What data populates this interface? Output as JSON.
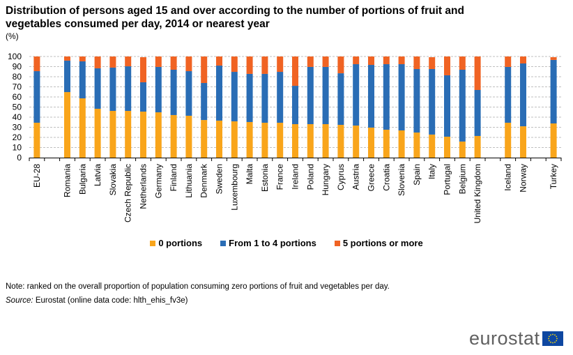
{
  "title": "Distribution of persons aged 15 and over according to the number of portions of fruit and vegetables consumed per day, 2014 or nearest year",
  "unit": "(%)",
  "note": "Note: ranked on the overall proportion of population consuming zero portions of fruit and vegetables per day.",
  "source_label": "Source:",
  "source_text": " Eurostat (online data code: hlth_ehis_fv3e)",
  "logo_text": "eurostat",
  "colors": {
    "zero": "#f9a51b",
    "one_to_four": "#2a6db5",
    "five_plus": "#f06323",
    "grid": "#bfbfbf"
  },
  "chart_data": {
    "type": "bar",
    "stacked": true,
    "title": "Distribution of persons aged 15 and over according to the number of portions of fruit and vegetables consumed per day, 2014 or nearest year",
    "ylabel": "(%)",
    "xlabel": "",
    "ylim": [
      0,
      100
    ],
    "yticks": [
      0,
      10,
      20,
      30,
      40,
      50,
      60,
      70,
      80,
      90,
      100
    ],
    "grid": true,
    "legend_position": "bottom",
    "categories": [
      "EU-28",
      "",
      "Romania",
      "Bulgaria",
      "Latvia",
      "Slovakia",
      "Czech Republic",
      "Netherlands",
      "Germany",
      "Finland",
      "Lithuania",
      "Denmark",
      "Sweden",
      "Luxembourg",
      "Malta",
      "Estonia",
      "France",
      "Ireland",
      "Poland",
      "Hungary",
      "Cyprus",
      "Austria",
      "Greece",
      "Croatia",
      "Slovenia",
      "Spain",
      "Italy",
      "Portugal",
      "Belgium",
      "United Kingdom",
      "",
      "Iceland",
      "Norway",
      "",
      "Turkey"
    ],
    "series": [
      {
        "name": "0 portions",
        "key": "zero",
        "values": [
          34.5,
          null,
          64.8,
          58.6,
          48.3,
          46.2,
          46.2,
          45.5,
          44.8,
          42.1,
          41.4,
          37.2,
          36.6,
          35.9,
          35.2,
          34.5,
          34.5,
          33.1,
          33.1,
          33.1,
          32.4,
          31.7,
          29.7,
          27.6,
          26.9,
          24.8,
          22.8,
          20.7,
          15.9,
          21.4,
          null,
          34.5,
          31.0,
          null,
          33.8
        ]
      },
      {
        "name": "From 1 to 4 portions",
        "key": "one_to_four",
        "values": [
          51.0,
          null,
          31.1,
          36.6,
          40.0,
          42.8,
          44.1,
          29.0,
          44.9,
          44.8,
          44.1,
          36.6,
          54.4,
          48.9,
          47.6,
          48.3,
          50.3,
          37.9,
          56.6,
          56.6,
          51.0,
          60.7,
          62.0,
          64.8,
          65.5,
          62.8,
          64.8,
          60.7,
          71.0,
          45.5,
          null,
          55.2,
          62.1,
          null,
          62.8
        ]
      },
      {
        "name": "5 portions or more",
        "key": "five_plus",
        "values": [
          14.5,
          null,
          4.1,
          4.8,
          11.7,
          11.0,
          9.7,
          24.8,
          10.3,
          13.1,
          14.5,
          26.2,
          9.0,
          15.2,
          17.2,
          17.2,
          15.2,
          29.0,
          10.3,
          10.3,
          16.6,
          7.6,
          8.3,
          7.6,
          7.6,
          12.4,
          11.7,
          18.6,
          13.1,
          33.1,
          null,
          10.3,
          6.9,
          null,
          2.7
        ]
      }
    ]
  }
}
